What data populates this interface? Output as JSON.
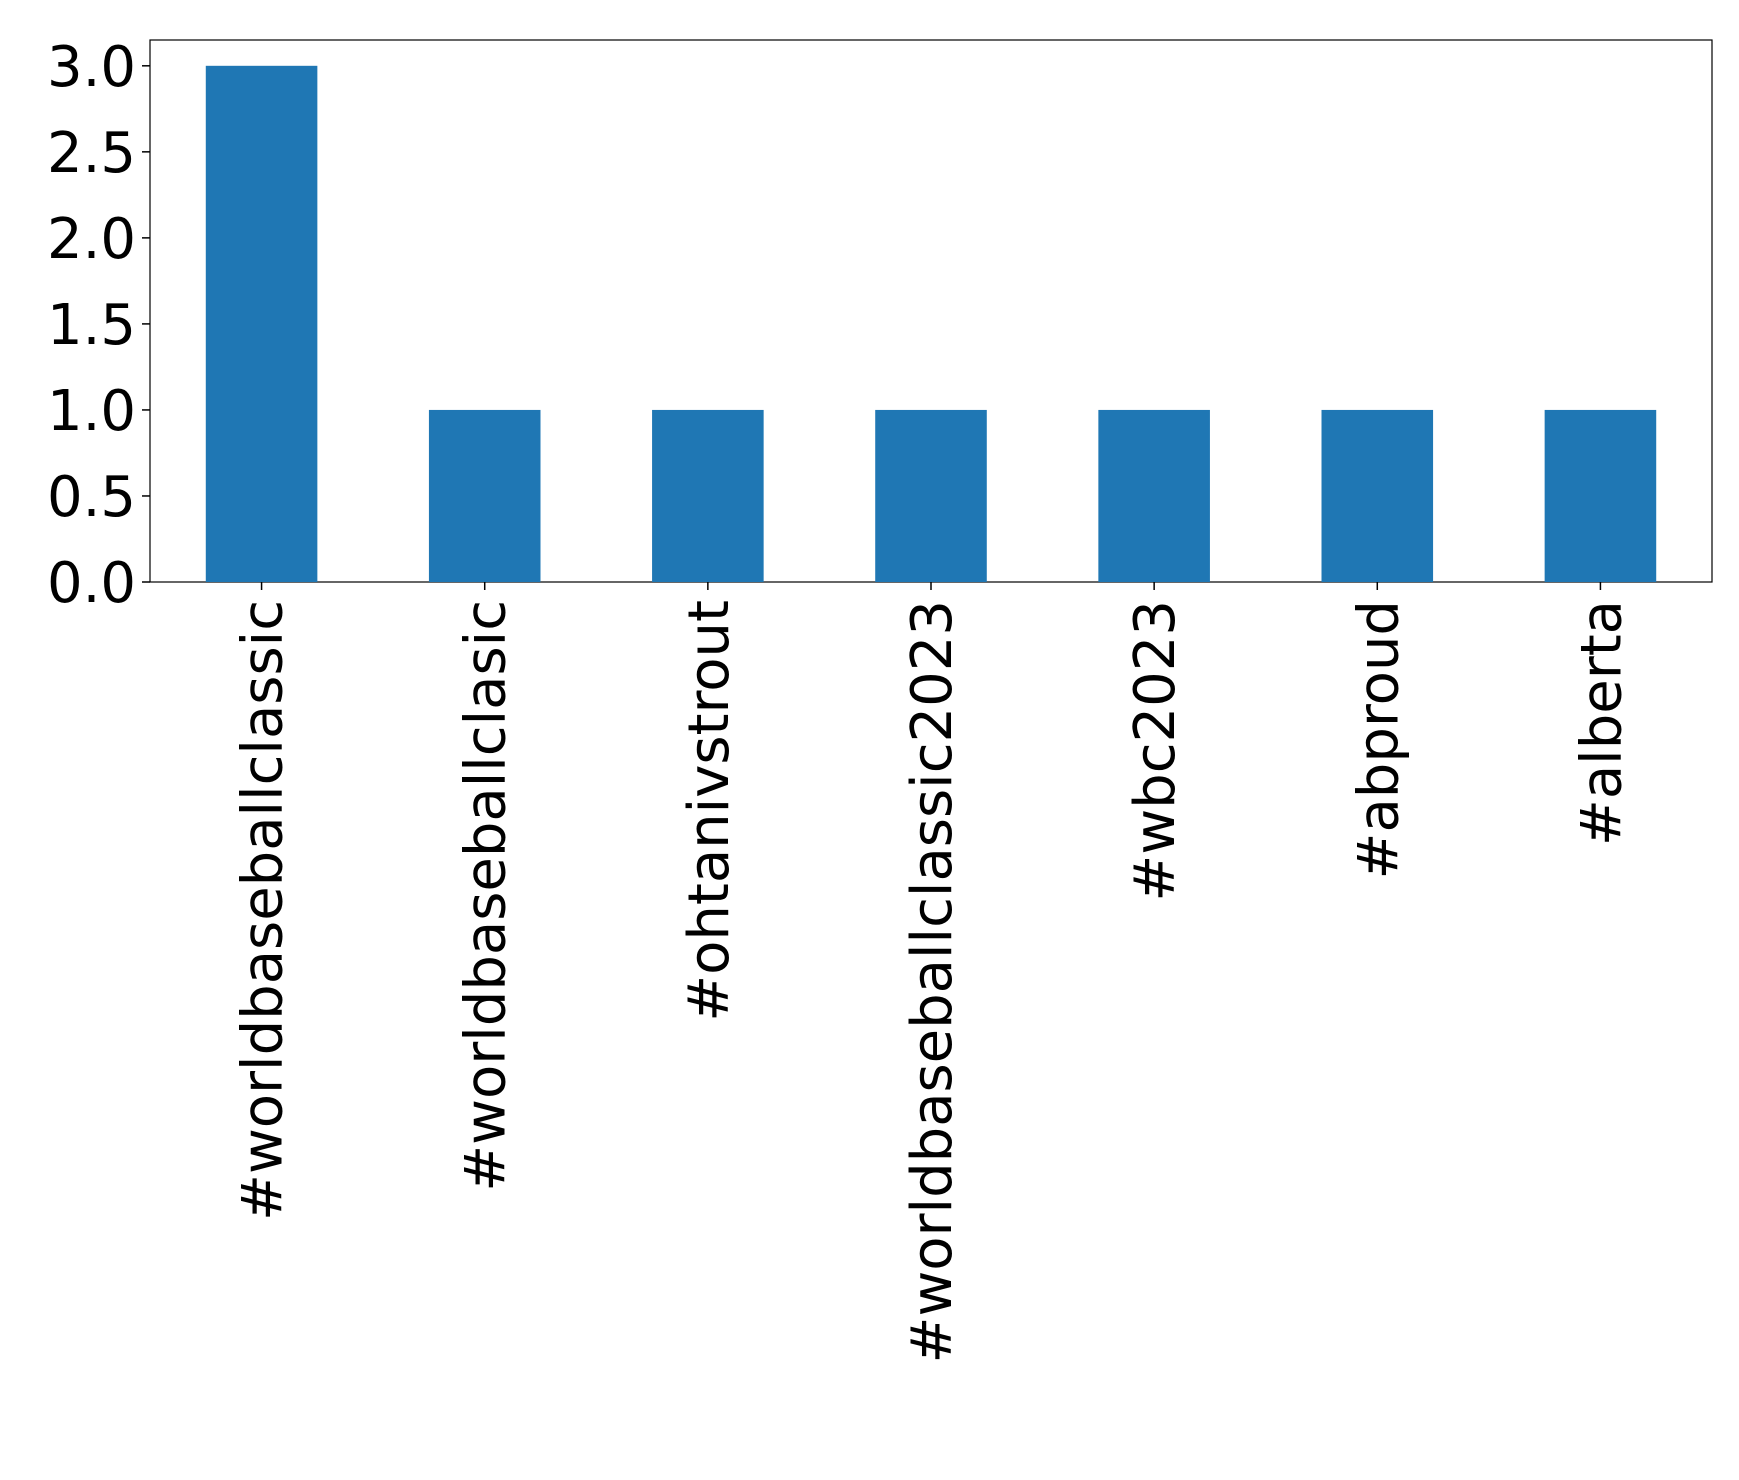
{
  "chart_data": {
    "type": "bar",
    "categories": [
      "#worldbaseballclassic",
      "#worldbaseballclasic",
      "#ohtanivstrout",
      "#worldbaseballclassic2023",
      "#wbc2023",
      "#abproud",
      "#alberta"
    ],
    "values": [
      3,
      1,
      1,
      1,
      1,
      1,
      1
    ],
    "color": "#1f77b4",
    "ylim": [
      0,
      3.15
    ],
    "yticks": [
      {
        "value": 0,
        "label": "0.0"
      },
      0.5,
      {
        "value": 1,
        "label": "1.0"
      },
      1.5,
      {
        "value": 2,
        "label": "2.0"
      },
      2.5,
      {
        "value": 3,
        "label": "3.0"
      }
    ],
    "grid": false
  }
}
